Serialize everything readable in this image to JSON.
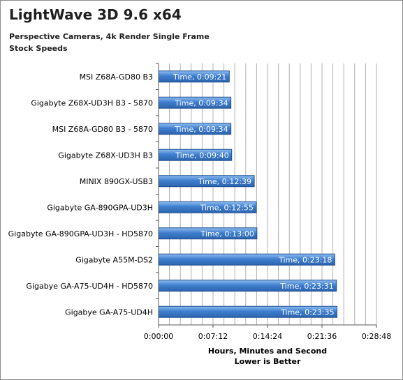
{
  "chart_data": {
    "type": "bar",
    "orientation": "horizontal",
    "title": "LightWave 3D 9.6 x64",
    "subtitle": [
      "Perspective Cameras, 4k Render Single Frame",
      "Stock Speeds"
    ],
    "categories": [
      "MSI Z68A-GD80 B3",
      "Gigabyte Z68X-UD3H B3 - 5870",
      "MSI Z68A-GD80 B3 - 5870",
      "Gigabyte Z68X-UD3H B3",
      "MINIX 890GX-USB3",
      "Gigabyte GA-890GPA-UD3H",
      "Gigabyte GA-890GPA-UD3H - HD5870",
      "Gigabyte A55M-DS2",
      "Gigabye GA-A75-UD4H - HD5870",
      "Gigabye GA-A75-UD4H"
    ],
    "values": [
      "0:09:21",
      "0:09:34",
      "0:09:34",
      "0:09:40",
      "0:12:39",
      "0:12:55",
      "0:13:00",
      "0:23:18",
      "0:23:31",
      "0:23:35"
    ],
    "values_seconds": [
      561,
      574,
      574,
      580,
      759,
      775,
      780,
      1398,
      1411,
      1415
    ],
    "data_labels": [
      "Time, 0:09:21",
      "Time, 0:09:34",
      "Time, 0:09:34",
      "Time, 0:09:40",
      "Time, 0:12:39",
      "Time, 0:12:55",
      "Time, 0:13:00",
      "Time, 0:23:18",
      "Time, 0:23:31",
      "Time, 0:23:35"
    ],
    "x_ticks": [
      "0:00:00",
      "0:07:12",
      "0:14:24",
      "0:21:36",
      "0:28:48"
    ],
    "xlim": [
      "0:00:00",
      "0:28:48"
    ],
    "xlim_seconds": [
      0,
      1728
    ],
    "xlabel": [
      "Hours, Minutes and Second",
      "Lower is Better"
    ],
    "ylabel": "",
    "grid": "vertical",
    "legend": "none",
    "bar_color": "#3f7fcf",
    "bar_top_color": "#8fbef0",
    "bar_edge_color": "#1f4f8f",
    "grid_color": "#b0b0b0"
  }
}
